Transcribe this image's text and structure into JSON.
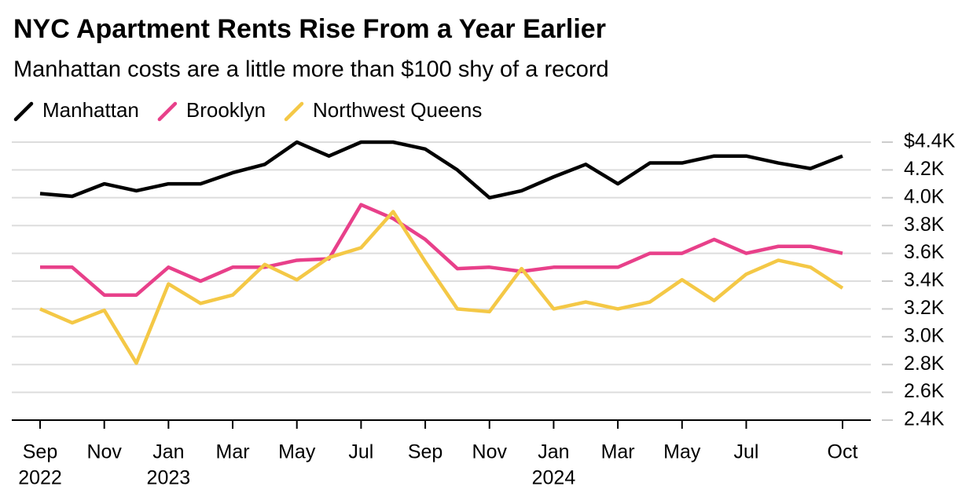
{
  "chart_data": {
    "type": "line",
    "title": "NYC Apartment Rents Rise From a Year Earlier",
    "subtitle": "Manhattan costs are a little more than $100 shy of a record",
    "categories": [
      "Sep",
      null,
      "Nov",
      null,
      "Jan",
      null,
      "Mar",
      null,
      "May",
      null,
      "Jul",
      null,
      "Sep",
      null,
      "Nov",
      null,
      "Jan",
      null,
      "Mar",
      null,
      "May",
      null,
      "Jul",
      null,
      null,
      "Oct"
    ],
    "category_years": [
      "2022",
      null,
      null,
      null,
      "2023",
      null,
      null,
      null,
      null,
      null,
      null,
      null,
      null,
      null,
      null,
      null,
      "2024",
      null,
      null,
      null,
      null,
      null,
      null,
      null,
      null,
      null
    ],
    "series": [
      {
        "name": "Manhattan",
        "color": "#000000",
        "values": [
          4030,
          4010,
          4100,
          4050,
          4100,
          4100,
          4180,
          4240,
          4400,
          4300,
          4400,
          4400,
          4350,
          4200,
          4000,
          4050,
          4150,
          4240,
          4100,
          4250,
          4250,
          4300,
          4300,
          4250,
          4210,
          4300
        ]
      },
      {
        "name": "Brooklyn",
        "color": "#e8408a",
        "values": [
          3500,
          3500,
          3300,
          3300,
          3500,
          3400,
          3500,
          3500,
          3550,
          3560,
          3950,
          3850,
          3700,
          3490,
          3500,
          3470,
          3500,
          3500,
          3500,
          3600,
          3600,
          3700,
          3600,
          3650,
          3650,
          3600
        ]
      },
      {
        "name": "Northwest Queens",
        "color": "#f4c846",
        "values": [
          3200,
          3100,
          3190,
          2810,
          3380,
          3240,
          3300,
          3520,
          3410,
          3570,
          3640,
          3900,
          3540,
          3200,
          3180,
          3490,
          3200,
          3250,
          3200,
          3250,
          3410,
          3260,
          3450,
          3550,
          3500,
          3350
        ]
      }
    ],
    "ylim": [
      2400,
      4400
    ],
    "yticks": [
      {
        "value": 2400,
        "label": "2.4K"
      },
      {
        "value": 2600,
        "label": "2.6K"
      },
      {
        "value": 2800,
        "label": "2.8K"
      },
      {
        "value": 3000,
        "label": "3.0K"
      },
      {
        "value": 3200,
        "label": "3.2K"
      },
      {
        "value": 3400,
        "label": "3.4K"
      },
      {
        "value": 3600,
        "label": "3.6K"
      },
      {
        "value": 3800,
        "label": "3.8K"
      },
      {
        "value": 4000,
        "label": "4.0K"
      },
      {
        "value": 4200,
        "label": "4.2K"
      },
      {
        "value": 4400,
        "label": "$4.4K"
      }
    ],
    "grid": true
  }
}
